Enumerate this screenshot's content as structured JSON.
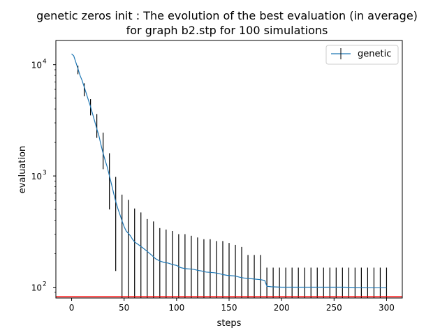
{
  "chart_data": {
    "type": "line",
    "title_line1": "genetic zeros init : The evolution of the best evaluation (in average)",
    "title_line2": "for graph b2.stp for 100 simulations",
    "xlabel": "steps",
    "ylabel": "evaluation",
    "yscale": "log",
    "xlim": [
      -15,
      315
    ],
    "ylim": [
      80,
      16500
    ],
    "x_ticks": [
      0,
      50,
      100,
      150,
      200,
      250,
      300
    ],
    "y_ticks": [
      {
        "value": 100,
        "base": "10",
        "exp": "2"
      },
      {
        "value": 1000,
        "base": "10",
        "exp": "3"
      },
      {
        "value": 10000,
        "base": "10",
        "exp": "4"
      }
    ],
    "grid": false,
    "legend_position": "top-right",
    "series": [
      {
        "name": "genetic",
        "color": "#1f77b4",
        "x": [
          0,
          2,
          4,
          6,
          8,
          10,
          12,
          14,
          16,
          18,
          20,
          22,
          24,
          26,
          28,
          30,
          32,
          34,
          36,
          38,
          40,
          42,
          44,
          46,
          48,
          50,
          52,
          54,
          56,
          58,
          60,
          64,
          68,
          72,
          76,
          80,
          84,
          88,
          92,
          96,
          100,
          104,
          108,
          112,
          116,
          120,
          124,
          128,
          132,
          136,
          140,
          144,
          148,
          152,
          156,
          160,
          164,
          168,
          172,
          176,
          180,
          184,
          186,
          190,
          200,
          220,
          240,
          260,
          280,
          300
        ],
        "y": [
          12500,
          12000,
          10500,
          9200,
          8000,
          7200,
          6300,
          5500,
          4800,
          4200,
          3600,
          3100,
          2650,
          2300,
          1900,
          1600,
          1380,
          1200,
          1000,
          840,
          700,
          590,
          510,
          450,
          395,
          350,
          320,
          305,
          290,
          270,
          255,
          240,
          225,
          210,
          195,
          180,
          172,
          167,
          165,
          160,
          157,
          150,
          147,
          146,
          145,
          142,
          140,
          137,
          136,
          135,
          133,
          130,
          128,
          127,
          126,
          123,
          121,
          120,
          119,
          118,
          117,
          115,
          102,
          101,
          100,
          100,
          100,
          100,
          99,
          99
        ]
      }
    ],
    "error_bars": {
      "x": [
        6,
        12,
        18,
        24,
        30,
        36,
        42,
        48,
        54,
        60,
        66,
        72,
        78,
        84,
        90,
        96,
        102,
        108,
        114,
        120,
        126,
        132,
        138,
        144,
        150,
        156,
        162,
        168,
        174,
        180,
        186,
        192,
        198,
        204,
        210,
        216,
        222,
        228,
        234,
        240,
        246,
        252,
        258,
        264,
        270,
        276,
        282,
        288,
        294,
        300
      ],
      "lower": [
        8200,
        5200,
        3500,
        2200,
        1150,
        500,
        140,
        80,
        80,
        80,
        80,
        80,
        80,
        80,
        80,
        80,
        80,
        80,
        80,
        80,
        80,
        80,
        80,
        80,
        80,
        80,
        80,
        80,
        80,
        80,
        80,
        80,
        80,
        80,
        80,
        80,
        80,
        80,
        80,
        80,
        80,
        80,
        80,
        80,
        80,
        80,
        80,
        80,
        80,
        80
      ],
      "upper": [
        9800,
        6800,
        4900,
        3600,
        2450,
        1600,
        980,
        680,
        610,
        510,
        470,
        410,
        390,
        340,
        330,
        320,
        300,
        300,
        290,
        280,
        270,
        270,
        260,
        260,
        250,
        240,
        230,
        195,
        195,
        195,
        150,
        150,
        150,
        150,
        150,
        150,
        150,
        150,
        150,
        150,
        150,
        150,
        150,
        150,
        150,
        150,
        150,
        150,
        150,
        150
      ]
    },
    "reference_line": {
      "y": 82,
      "color": "#ff0000"
    }
  }
}
